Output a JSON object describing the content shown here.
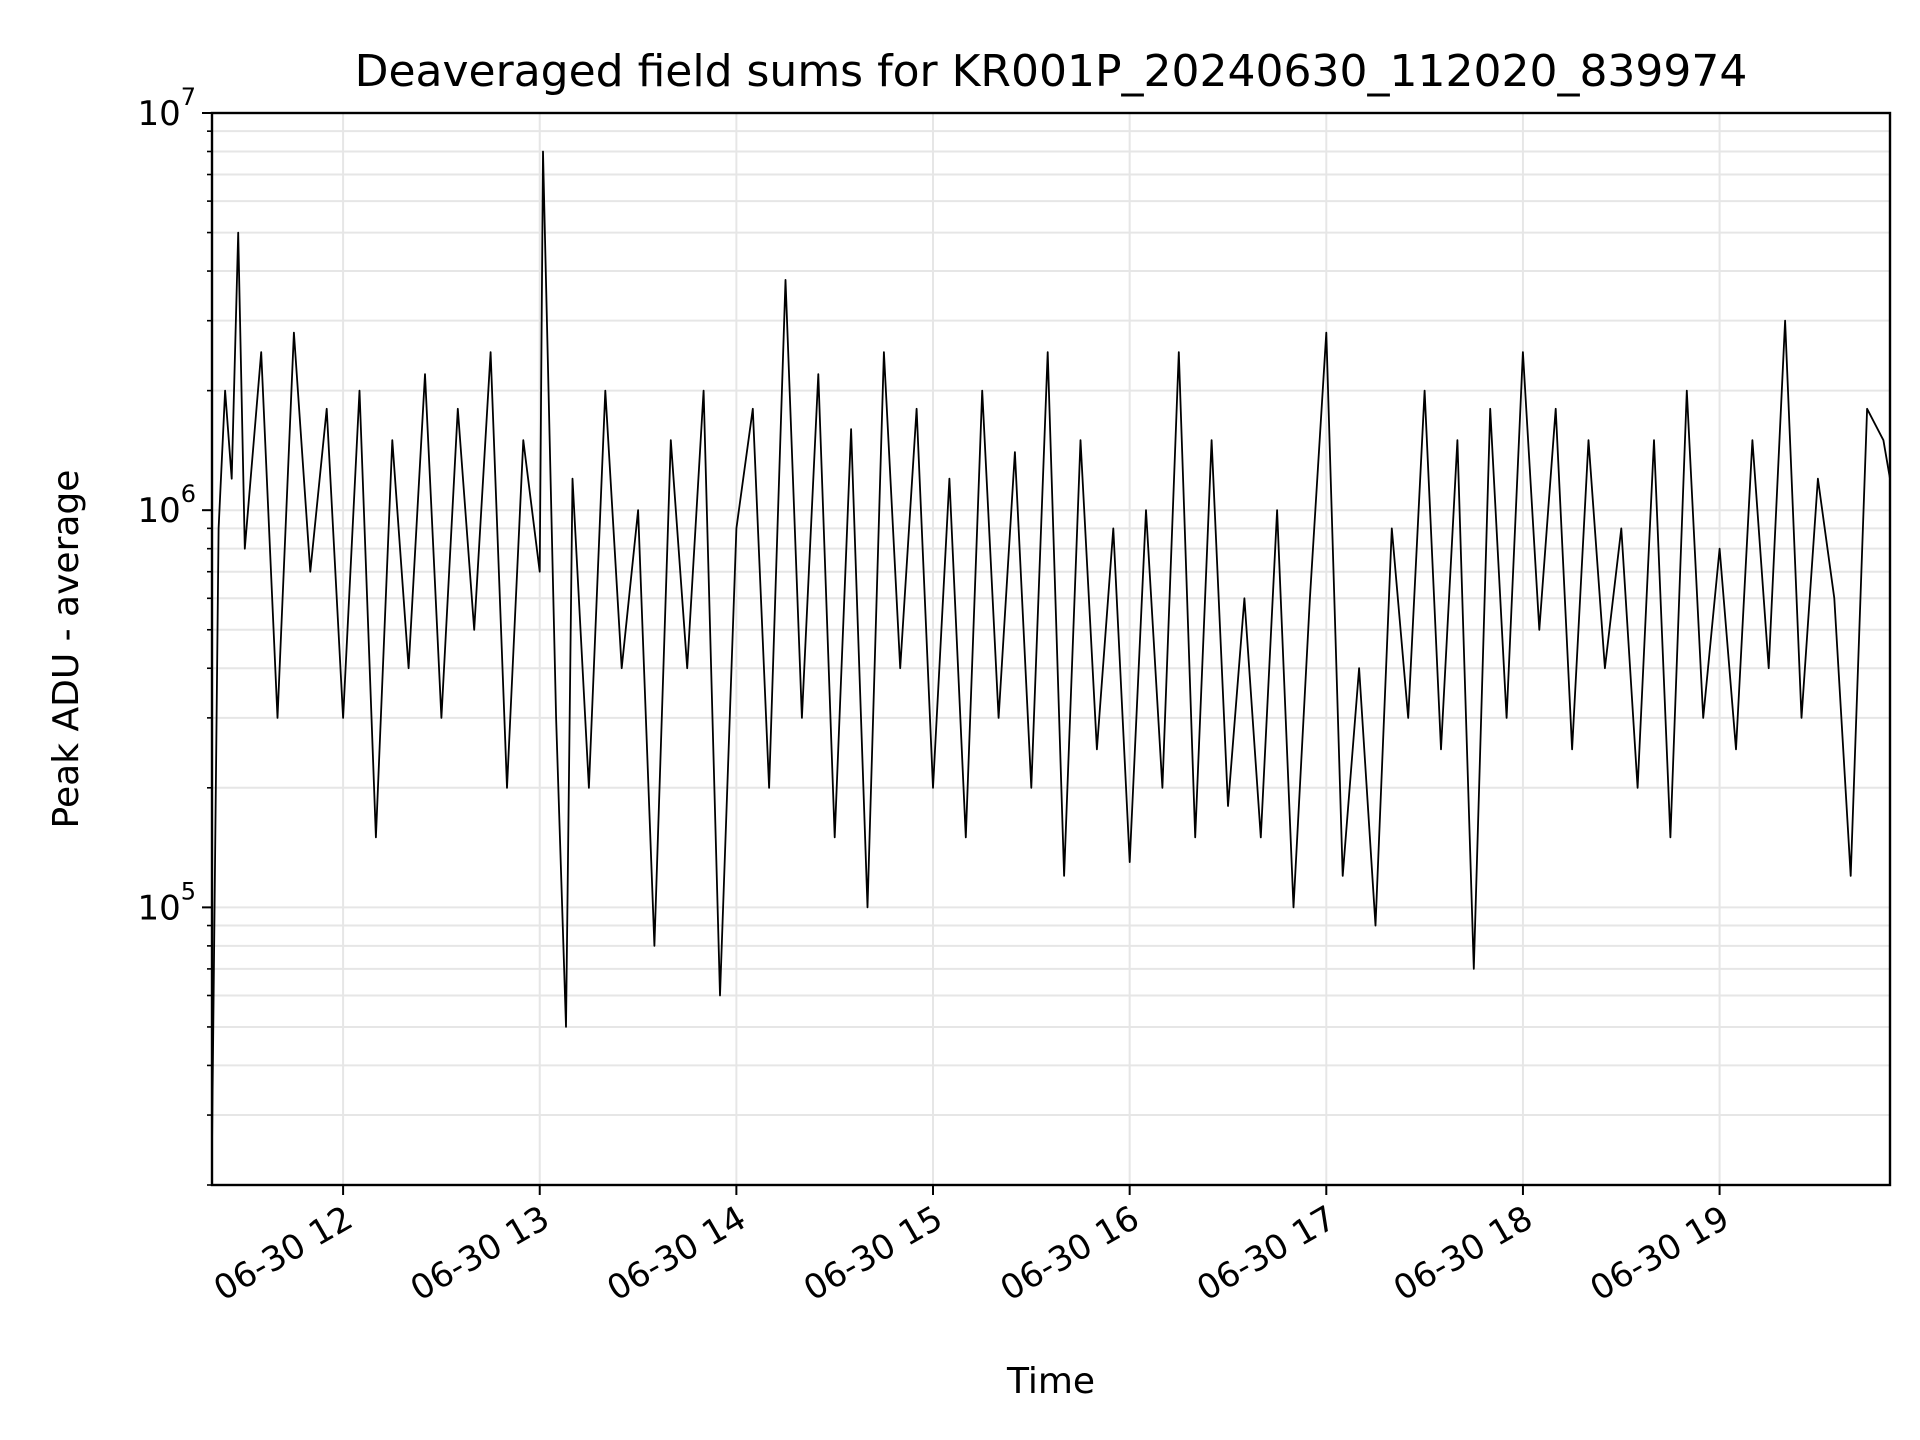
{
  "chart_data": {
    "type": "line",
    "title": "Deaveraged field sums for KR001P_20240630_112020_839974",
    "xlabel": "Time",
    "ylabel": "Peak ADU - average",
    "y_scale": "log",
    "grid": true,
    "legend": "none",
    "line_color": "#000000",
    "grid_color": "#e6e6e6",
    "x_range": [
      "2024-06-30 11:20",
      "2024-06-30 19:52"
    ],
    "ylim": [
      20000,
      10000000
    ],
    "x_ticks": [
      {
        "time": "2024-06-30 12:00",
        "label": "06-30 12"
      },
      {
        "time": "2024-06-30 13:00",
        "label": "06-30 13"
      },
      {
        "time": "2024-06-30 14:00",
        "label": "06-30 14"
      },
      {
        "time": "2024-06-30 15:00",
        "label": "06-30 15"
      },
      {
        "time": "2024-06-30 16:00",
        "label": "06-30 16"
      },
      {
        "time": "2024-06-30 17:00",
        "label": "06-30 17"
      },
      {
        "time": "2024-06-30 18:00",
        "label": "06-30 18"
      },
      {
        "time": "2024-06-30 19:00",
        "label": "06-30 19"
      }
    ],
    "y_ticks": [
      {
        "value": 100000,
        "base": "10",
        "exp": "5"
      },
      {
        "value": 1000000,
        "base": "10",
        "exp": "6"
      },
      {
        "value": 10000000,
        "base": "10",
        "exp": "7"
      }
    ],
    "series": [
      {
        "x": [
          "2024-06-30 11:20",
          "2024-06-30 11:22",
          "2024-06-30 11:24",
          "2024-06-30 11:26",
          "2024-06-30 11:28",
          "2024-06-30 11:30",
          "2024-06-30 11:35",
          "2024-06-30 11:40",
          "2024-06-30 11:45",
          "2024-06-30 11:50",
          "2024-06-30 11:55",
          "2024-06-30 12:00",
          "2024-06-30 12:05",
          "2024-06-30 12:10",
          "2024-06-30 12:15",
          "2024-06-30 12:20",
          "2024-06-30 12:25",
          "2024-06-30 12:30",
          "2024-06-30 12:35",
          "2024-06-30 12:40",
          "2024-06-30 12:45",
          "2024-06-30 12:50",
          "2024-06-30 12:55",
          "2024-06-30 13:00",
          "2024-06-30 13:01",
          "2024-06-30 13:05",
          "2024-06-30 13:08",
          "2024-06-30 13:10",
          "2024-06-30 13:15",
          "2024-06-30 13:20",
          "2024-06-30 13:25",
          "2024-06-30 13:30",
          "2024-06-30 13:35",
          "2024-06-30 13:40",
          "2024-06-30 13:45",
          "2024-06-30 13:50",
          "2024-06-30 13:55",
          "2024-06-30 14:00",
          "2024-06-30 14:05",
          "2024-06-30 14:10",
          "2024-06-30 14:15",
          "2024-06-30 14:20",
          "2024-06-30 14:25",
          "2024-06-30 14:30",
          "2024-06-30 14:35",
          "2024-06-30 14:40",
          "2024-06-30 14:45",
          "2024-06-30 14:50",
          "2024-06-30 14:55",
          "2024-06-30 15:00",
          "2024-06-30 15:05",
          "2024-06-30 15:10",
          "2024-06-30 15:15",
          "2024-06-30 15:20",
          "2024-06-30 15:25",
          "2024-06-30 15:30",
          "2024-06-30 15:35",
          "2024-06-30 15:40",
          "2024-06-30 15:45",
          "2024-06-30 15:50",
          "2024-06-30 15:55",
          "2024-06-30 16:00",
          "2024-06-30 16:05",
          "2024-06-30 16:10",
          "2024-06-30 16:15",
          "2024-06-30 16:20",
          "2024-06-30 16:25",
          "2024-06-30 16:30",
          "2024-06-30 16:35",
          "2024-06-30 16:40",
          "2024-06-30 16:45",
          "2024-06-30 16:50",
          "2024-06-30 16:55",
          "2024-06-30 17:00",
          "2024-06-30 17:05",
          "2024-06-30 17:10",
          "2024-06-30 17:15",
          "2024-06-30 17:20",
          "2024-06-30 17:25",
          "2024-06-30 17:30",
          "2024-06-30 17:35",
          "2024-06-30 17:40",
          "2024-06-30 17:45",
          "2024-06-30 17:50",
          "2024-06-30 17:55",
          "2024-06-30 18:00",
          "2024-06-30 18:05",
          "2024-06-30 18:10",
          "2024-06-30 18:15",
          "2024-06-30 18:20",
          "2024-06-30 18:25",
          "2024-06-30 18:30",
          "2024-06-30 18:35",
          "2024-06-30 18:40",
          "2024-06-30 18:45",
          "2024-06-30 18:50",
          "2024-06-30 18:55",
          "2024-06-30 19:00",
          "2024-06-30 19:05",
          "2024-06-30 19:10",
          "2024-06-30 19:15",
          "2024-06-30 19:20",
          "2024-06-30 19:25",
          "2024-06-30 19:30",
          "2024-06-30 19:35",
          "2024-06-30 19:40",
          "2024-06-30 19:45",
          "2024-06-30 19:50",
          "2024-06-30 19:52"
        ],
        "values": [
          25000,
          900000,
          2000000,
          1200000,
          5000000,
          800000,
          2500000,
          300000,
          2800000,
          700000,
          1800000,
          300000,
          2000000,
          150000,
          1500000,
          400000,
          2200000,
          300000,
          1800000,
          500000,
          2500000,
          200000,
          1500000,
          700000,
          8000000,
          300000,
          50000,
          1200000,
          200000,
          2000000,
          400000,
          1000000,
          80000,
          1500000,
          400000,
          2000000,
          60000,
          900000,
          1800000,
          200000,
          3800000,
          300000,
          2200000,
          150000,
          1600000,
          100000,
          2500000,
          400000,
          1800000,
          200000,
          1200000,
          150000,
          2000000,
          300000,
          1400000,
          200000,
          2500000,
          120000,
          1500000,
          250000,
          900000,
          130000,
          1000000,
          200000,
          2500000,
          150000,
          1500000,
          180000,
          600000,
          150000,
          1000000,
          100000,
          600000,
          2800000,
          120000,
          400000,
          90000,
          900000,
          300000,
          2000000,
          250000,
          1500000,
          70000,
          1800000,
          300000,
          2500000,
          500000,
          1800000,
          250000,
          1500000,
          400000,
          900000,
          200000,
          1500000,
          150000,
          2000000,
          300000,
          800000,
          250000,
          1500000,
          400000,
          3000000,
          300000,
          1200000,
          600000,
          120000,
          1800000,
          1500000,
          1200000
        ]
      }
    ]
  }
}
